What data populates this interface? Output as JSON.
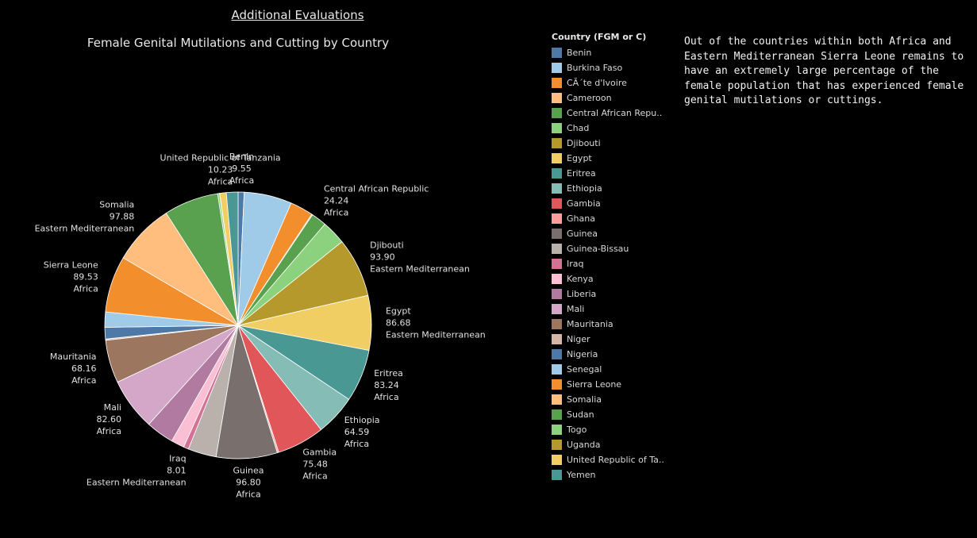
{
  "page": {
    "heading": "Additional Evaluations",
    "note": "Out of the countries within both Africa and Eastern Mediterranean Sierra Leone remains to have an extremely large percentage of the female population that has experienced female genital mutilations or cuttings."
  },
  "legend": {
    "title": "Country (FGM or C)",
    "items": [
      {
        "label": "Benin",
        "color": "#4e79a7"
      },
      {
        "label": "Burkina Faso",
        "color": "#a0cbe8"
      },
      {
        "label": "CÃ´te d'Ivoire",
        "color": "#f28e2b"
      },
      {
        "label": "Cameroon",
        "color": "#ffbe7d"
      },
      {
        "label": "Central African Repu..",
        "color": "#59a14f"
      },
      {
        "label": "Chad",
        "color": "#8cd17d"
      },
      {
        "label": "Djibouti",
        "color": "#b6992d"
      },
      {
        "label": "Egypt",
        "color": "#f1ce63"
      },
      {
        "label": "Eritrea",
        "color": "#499894"
      },
      {
        "label": "Ethiopia",
        "color": "#86bcb6"
      },
      {
        "label": "Gambia",
        "color": "#e15759"
      },
      {
        "label": "Ghana",
        "color": "#ff9d9a"
      },
      {
        "label": "Guinea",
        "color": "#79706e"
      },
      {
        "label": "Guinea-Bissau",
        "color": "#bab0ac"
      },
      {
        "label": "Iraq",
        "color": "#d37295"
      },
      {
        "label": "Kenya",
        "color": "#fabfd2"
      },
      {
        "label": "Liberia",
        "color": "#b07aa1"
      },
      {
        "label": "Mali",
        "color": "#d4a6c8"
      },
      {
        "label": "Mauritania",
        "color": "#9d7660"
      },
      {
        "label": "Niger",
        "color": "#d7b5a6"
      },
      {
        "label": "Nigeria",
        "color": "#4e79a7"
      },
      {
        "label": "Senegal",
        "color": "#a0cbe8"
      },
      {
        "label": "Sierra Leone",
        "color": "#f28e2b"
      },
      {
        "label": "Somalia",
        "color": "#ffbe7d"
      },
      {
        "label": "Sudan",
        "color": "#59a14f"
      },
      {
        "label": "Togo",
        "color": "#8cd17d"
      },
      {
        "label": "Uganda",
        "color": "#b6992d"
      },
      {
        "label": "United Republic of Ta..",
        "color": "#f1ce63"
      },
      {
        "label": "Yemen",
        "color": "#499894"
      }
    ]
  },
  "chart_data": {
    "type": "pie",
    "title": "Female Genital Mutilations and Cutting by Country",
    "order": "clockwise from top",
    "slices": [
      {
        "country": "Benin",
        "value": 9.55,
        "region": "Africa",
        "color": "#4e79a7",
        "labeled": true
      },
      {
        "country": "Burkina Faso",
        "value": 75.8,
        "region": "",
        "color": "#a0cbe8",
        "labeled": false
      },
      {
        "country": "CÃ´te d'Ivoire",
        "value": 36.7,
        "region": "",
        "color": "#f28e2b",
        "labeled": false
      },
      {
        "country": "Cameroon",
        "value": 1.4,
        "region": "",
        "color": "#ffbe7d",
        "labeled": false
      },
      {
        "country": "Central African Republic",
        "value": 24.24,
        "region": "Africa",
        "color": "#59a14f",
        "labeled": true
      },
      {
        "country": "Chad",
        "value": 38.4,
        "region": "",
        "color": "#8cd17d",
        "labeled": false
      },
      {
        "country": "Djibouti",
        "value": 93.9,
        "region": "Eastern Mediterranean",
        "color": "#b6992d",
        "labeled": true
      },
      {
        "country": "Egypt",
        "value": 86.68,
        "region": "Eastern Mediterranean",
        "color": "#f1ce63",
        "labeled": true
      },
      {
        "country": "Eritrea",
        "value": 83.24,
        "region": "Africa",
        "color": "#499894",
        "labeled": true
      },
      {
        "country": "Ethiopia",
        "value": 64.59,
        "region": "Africa",
        "color": "#86bcb6",
        "labeled": true
      },
      {
        "country": "Gambia",
        "value": 75.48,
        "region": "Africa",
        "color": "#e15759",
        "labeled": true
      },
      {
        "country": "Ghana",
        "value": 2.4,
        "region": "",
        "color": "#ff9d9a",
        "labeled": false
      },
      {
        "country": "Guinea",
        "value": 96.8,
        "region": "Africa",
        "color": "#79706e",
        "labeled": true
      },
      {
        "country": "Guinea-Bissau",
        "value": 44.9,
        "region": "",
        "color": "#bab0ac",
        "labeled": false
      },
      {
        "country": "Iraq",
        "value": 8.01,
        "region": "Eastern Mediterranean",
        "color": "#d37295",
        "labeled": true
      },
      {
        "country": "Kenya",
        "value": 21.0,
        "region": "",
        "color": "#fabfd2",
        "labeled": false
      },
      {
        "country": "Liberia",
        "value": 44.4,
        "region": "",
        "color": "#b07aa1",
        "labeled": false
      },
      {
        "country": "Mali",
        "value": 82.6,
        "region": "Africa",
        "color": "#d4a6c8",
        "labeled": true
      },
      {
        "country": "Mauritania",
        "value": 68.16,
        "region": "Africa",
        "color": "#9d7660",
        "labeled": true
      },
      {
        "country": "Niger",
        "value": 2.0,
        "region": "",
        "color": "#d7b5a6",
        "labeled": false
      },
      {
        "country": "Nigeria",
        "value": 18.4,
        "region": "",
        "color": "#4e79a7",
        "labeled": false
      },
      {
        "country": "Senegal",
        "value": 24.2,
        "region": "",
        "color": "#a0cbe8",
        "labeled": false
      },
      {
        "country": "Sierra Leone",
        "value": 89.53,
        "region": "Africa",
        "color": "#f28e2b",
        "labeled": true
      },
      {
        "country": "Somalia",
        "value": 97.88,
        "region": "Eastern Mediterranean",
        "color": "#ffbe7d",
        "labeled": true
      },
      {
        "country": "Sudan",
        "value": 86.6,
        "region": "",
        "color": "#59a14f",
        "labeled": false
      },
      {
        "country": "Togo",
        "value": 3.1,
        "region": "",
        "color": "#8cd17d",
        "labeled": false
      },
      {
        "country": "Uganda",
        "value": 0.3,
        "region": "",
        "color": "#b6992d",
        "labeled": false
      },
      {
        "country": "United Republic of Tanzania",
        "value": 10.23,
        "region": "Africa",
        "color": "#f1ce63",
        "labeled": true
      },
      {
        "country": "Yemen",
        "value": 18.5,
        "region": "",
        "color": "#499894",
        "labeled": false
      }
    ]
  }
}
